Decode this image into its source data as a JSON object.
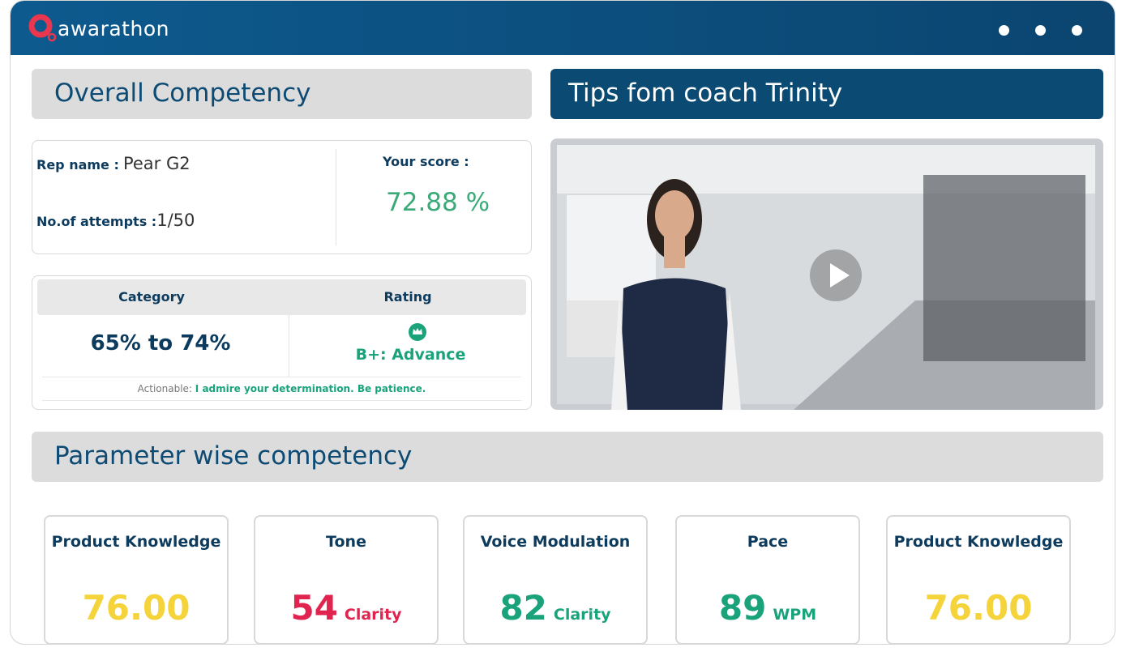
{
  "header": {
    "logo": "awarathon"
  },
  "overall": {
    "title": "Overall Competency",
    "rep_name_label": "Rep name :",
    "rep_name": "Pear G2",
    "attempts_label": "No.of attempts :",
    "attempts": "1/50",
    "score_label": "Your score :",
    "score": "72.88 %",
    "table": {
      "headers": [
        "Category",
        "Rating"
      ],
      "category": "65% to 74%",
      "rating": "B+: Advance",
      "actionable_label": "Actionable:",
      "actionable": "I admire your determination. Be patience."
    }
  },
  "tips": {
    "title": "Tips fom coach Trinity"
  },
  "parameters": {
    "title": "Parameter wise competency",
    "cards": [
      {
        "title": "Product Knowledge",
        "value": "76.00",
        "color": "#f5d33a"
      },
      {
        "title": "Tone",
        "value": "54",
        "unit": "Clarity",
        "color": "#e0244f"
      },
      {
        "title": "Voice Modulation",
        "value": "82",
        "unit": "Clarity",
        "color": "#1aa37a"
      },
      {
        "title": "Pace",
        "value": "89",
        "unit": "WPM",
        "color": "#1aa37a"
      },
      {
        "title": "Product Knowledge",
        "value": "76.00",
        "color": "#f5d33a"
      }
    ]
  }
}
